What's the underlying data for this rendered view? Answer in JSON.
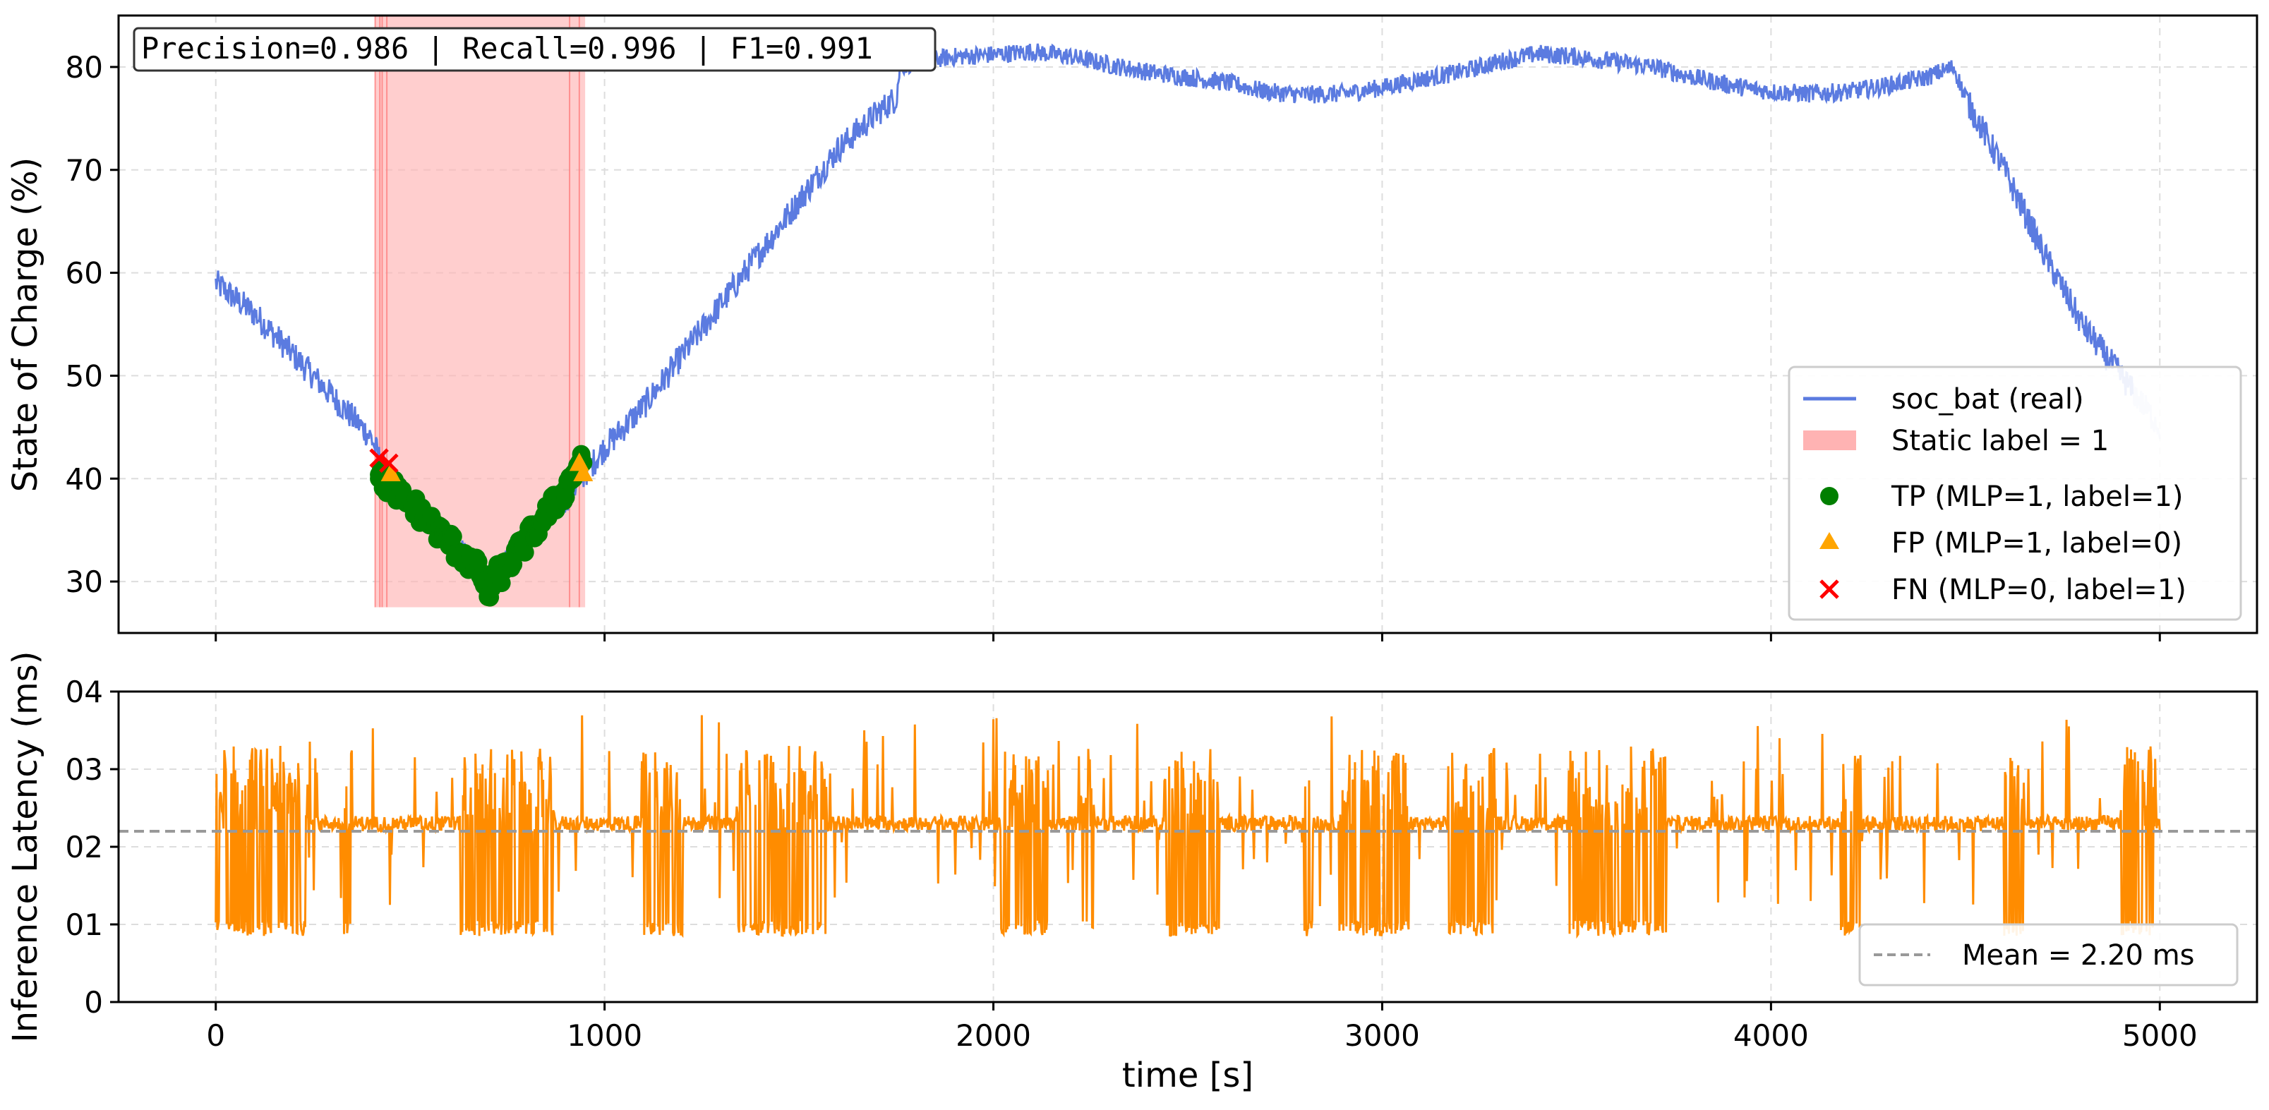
{
  "figure": {
    "metrics_box": "Precision=0.986 | Recall=0.996 | F1=0.991",
    "xlabel": "time [s]"
  },
  "chart_data": [
    {
      "type": "line",
      "ylabel": "State of Charge (%)",
      "xlim": [
        -250,
        5250
      ],
      "ylim": [
        25,
        85
      ],
      "xticks": [
        0,
        1000,
        2000,
        3000,
        4000,
        5000
      ],
      "yticks": [
        30,
        40,
        50,
        60,
        70,
        80
      ],
      "grid": true,
      "legend_position": "lower-right",
      "legend": [
        {
          "label": "soc_bat (real)",
          "kind": "line",
          "color": "#5b7be0"
        },
        {
          "label": "Static label = 1",
          "kind": "patch",
          "color": "#ffb3b3"
        },
        {
          "label": "TP (MLP=1, label=1)",
          "kind": "circle",
          "color": "#007f00"
        },
        {
          "label": "FP (MLP=1, label=0)",
          "kind": "triangle",
          "color": "#ffa500"
        },
        {
          "label": "FN (MLP=0, label=1)",
          "kind": "cross",
          "color": "#ff0000"
        }
      ],
      "soc_series": {
        "name": "soc_bat (real)",
        "color": "#5b7be0",
        "x": [
          0,
          100,
          200,
          300,
          400,
          430,
          500,
          600,
          700,
          800,
          900,
          960,
          1000,
          1100,
          1200,
          1300,
          1400,
          1500,
          1600,
          1700,
          1750,
          1760,
          1800,
          1900,
          2000,
          2100,
          2200,
          2300,
          2400,
          2500,
          2600,
          2700,
          2800,
          2900,
          3000,
          3100,
          3200,
          3300,
          3400,
          3500,
          3600,
          3700,
          3800,
          3900,
          4000,
          4100,
          4200,
          4300,
          4400,
          4470,
          4500,
          4600,
          4700,
          4800,
          4900,
          5000
        ],
        "y": [
          59,
          56,
          52,
          48,
          44,
          41,
          38,
          34,
          30,
          34,
          38,
          41,
          43,
          47,
          52,
          57,
          62,
          67,
          72,
          75.5,
          77,
          80,
          80.5,
          81,
          81.2,
          81.5,
          81,
          80.2,
          79.5,
          79,
          78.5,
          77.6,
          77.3,
          77.4,
          78,
          78.8,
          79.5,
          80.5,
          81.3,
          81,
          80.5,
          80,
          79,
          78.2,
          77.6,
          77.4,
          77.6,
          78.2,
          79,
          80,
          77,
          70,
          62,
          55,
          50,
          45
        ],
        "faded_from_x": 4930
      },
      "static_label_regions": [
        [
          410,
          950
        ]
      ],
      "static_label_color": "#ffb3b3",
      "tp_points": {
        "color": "#007f00",
        "x": [
          420,
          440,
          460,
          480,
          500,
          520,
          540,
          560,
          580,
          600,
          620,
          640,
          660,
          680,
          700,
          720,
          740,
          760,
          780,
          800,
          820,
          840,
          860,
          880,
          900,
          920,
          940
        ],
        "y": [
          40,
          39.5,
          39,
          38,
          37.5,
          37,
          36,
          35.5,
          34.5,
          34,
          33,
          32.5,
          31.5,
          31,
          28.5,
          30.5,
          31,
          32,
          33,
          34,
          35,
          36,
          37,
          38,
          39,
          40.5,
          42
        ]
      },
      "fp_points": {
        "color": "#ffa500",
        "x": [
          450,
          935,
          945
        ],
        "y": [
          40.5,
          41.5,
          40.5
        ]
      },
      "fn_points": {
        "color": "#ff0000",
        "x": [
          420,
          445
        ],
        "y": [
          42,
          41.5
        ]
      }
    },
    {
      "type": "line",
      "ylabel": "Inference Latency (ms)",
      "xlim": [
        -250,
        5250
      ],
      "ylim": [
        0,
        4
      ],
      "xticks": [
        0,
        1000,
        2000,
        3000,
        4000,
        5000
      ],
      "yticks": [
        0,
        1,
        2,
        3,
        4
      ],
      "ytick_labels": [
        "0",
        "01",
        "02",
        "03",
        "04"
      ],
      "grid": true,
      "legend_position": "lower-right",
      "latency_series": {
        "color": "#ff8c00",
        "baseline": 2.3,
        "low_blocks": [
          [
            0,
            230
          ],
          [
            330,
            350
          ],
          [
            630,
            870
          ],
          [
            1100,
            1200
          ],
          [
            1340,
            1570
          ],
          [
            2020,
            2140
          ],
          [
            2220,
            2260
          ],
          [
            2440,
            2580
          ],
          [
            2890,
            3070
          ],
          [
            2800,
            2820
          ],
          [
            3170,
            3290
          ],
          [
            3480,
            3730
          ],
          [
            4180,
            4230
          ],
          [
            4600,
            4650
          ],
          [
            4900,
            4990
          ]
        ],
        "spike_count_estimate": 120
      },
      "mean_line": {
        "label": "Mean = 2.20 ms",
        "value": 2.2,
        "color": "#999999"
      }
    }
  ]
}
